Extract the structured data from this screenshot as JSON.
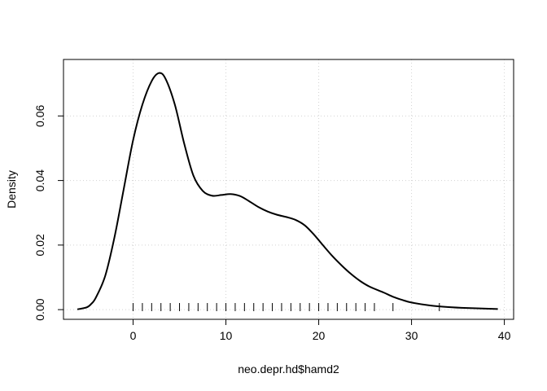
{
  "chart_data": {
    "type": "line",
    "title": "",
    "xlabel": "neo.depr.hd$hamd2",
    "ylabel": "Density",
    "xlim": [
      -7.5,
      41
    ],
    "ylim": [
      -0.003,
      0.0775
    ],
    "x_ticks": [
      "0",
      "10",
      "20",
      "30",
      "40"
    ],
    "y_ticks": [
      "0.00",
      "0.02",
      "0.04",
      "0.06"
    ],
    "grid": true,
    "series": [
      {
        "x": [
          -6,
          -5,
          -4.5,
          -4,
          -3,
          -2,
          -1,
          0,
          1,
          2,
          2.8,
          3.5,
          4.5,
          5.5,
          6.5,
          7.5,
          8.5,
          9.5,
          10.5,
          11.5,
          12.5,
          13.5,
          14.5,
          15.5,
          16.5,
          17.5,
          18.5,
          19.5,
          20.5,
          21.5,
          22.5,
          23.5,
          24.5,
          25.5,
          27,
          28,
          29,
          30,
          32,
          34,
          36,
          38,
          39.3
        ],
        "y": [
          0.0001,
          0.0007,
          0.0018,
          0.0038,
          0.0105,
          0.0225,
          0.0375,
          0.0525,
          0.0635,
          0.0708,
          0.0733,
          0.0715,
          0.0635,
          0.0515,
          0.0415,
          0.0368,
          0.0353,
          0.0355,
          0.0358,
          0.0352,
          0.0336,
          0.0318,
          0.0304,
          0.0294,
          0.0287,
          0.0278,
          0.0261,
          0.0232,
          0.0198,
          0.0165,
          0.0136,
          0.011,
          0.0088,
          0.0071,
          0.0053,
          0.004,
          0.003,
          0.0022,
          0.0013,
          0.0008,
          0.0005,
          0.0003,
          0.0002
        ]
      }
    ],
    "rug": [
      0,
      1,
      2,
      3,
      4,
      5,
      6,
      7,
      8,
      9,
      10,
      11,
      12,
      13,
      14,
      15,
      16,
      17,
      18,
      19,
      20,
      21,
      22,
      23,
      24,
      25,
      26,
      28,
      33
    ]
  }
}
